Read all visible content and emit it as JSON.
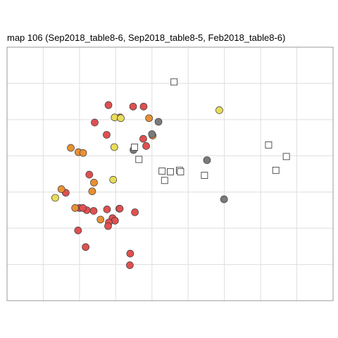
{
  "chart_data": {
    "type": "scatter",
    "title": "map 106 (Sep2018_table8-6, Sep2018_table8-5, Feb2018_table8-6)",
    "xlabel": "",
    "ylabel": "",
    "xlim": [
      0,
      9
    ],
    "ylim": [
      0,
      7
    ],
    "grid": true,
    "legend": "none",
    "tick_labels": "none",
    "colors": {
      "red": "#e05050",
      "orange": "#e89035",
      "yellow": "#e8dc5a",
      "gray": "#7a7a7a",
      "panel_border": "#999999",
      "grid": "#dedede"
    },
    "series": [
      {
        "marker": "circle",
        "color": "red",
        "points": [
          [
            2.8,
            5.4
          ],
          [
            2.42,
            4.92
          ],
          [
            3.12,
            5.06
          ],
          [
            3.77,
            5.36
          ],
          [
            3.48,
            5.36
          ],
          [
            2.75,
            4.58
          ],
          [
            3.76,
            4.47
          ],
          [
            3.84,
            4.27
          ],
          [
            2.27,
            3.48
          ],
          [
            1.62,
            2.98
          ],
          [
            2.0,
            2.56
          ],
          [
            2.2,
            2.5
          ],
          [
            2.09,
            2.56
          ],
          [
            2.39,
            2.48
          ],
          [
            2.76,
            2.52
          ],
          [
            3.1,
            2.54
          ],
          [
            3.11,
            2.54
          ],
          [
            3.53,
            2.44
          ],
          [
            2.91,
            2.28
          ],
          [
            2.98,
            2.21
          ],
          [
            2.81,
            2.16
          ],
          [
            2.79,
            2.06
          ],
          [
            1.96,
            1.94
          ],
          [
            2.17,
            1.48
          ],
          [
            3.4,
            1.3
          ],
          [
            3.39,
            0.98
          ]
        ]
      },
      {
        "marker": "circle",
        "color": "orange",
        "points": [
          [
            3.92,
            5.04
          ],
          [
            4.02,
            4.56
          ],
          [
            1.76,
            4.22
          ],
          [
            1.97,
            4.1
          ],
          [
            2.1,
            4.08
          ],
          [
            2.4,
            3.26
          ],
          [
            1.5,
            3.08
          ],
          [
            2.35,
            3.02
          ],
          [
            1.88,
            2.56
          ],
          [
            2.58,
            2.24
          ]
        ]
      },
      {
        "marker": "circle",
        "color": "yellow",
        "points": [
          [
            2.97,
            5.06
          ],
          [
            3.14,
            5.04
          ],
          [
            5.86,
            5.26
          ],
          [
            2.96,
            4.24
          ],
          [
            2.93,
            3.34
          ],
          [
            1.33,
            2.84
          ]
        ]
      },
      {
        "marker": "circle",
        "color": "gray",
        "points": [
          [
            4.18,
            4.94
          ],
          [
            4.0,
            4.6
          ],
          [
            3.49,
            4.16
          ],
          [
            5.52,
            3.88
          ],
          [
            5.99,
            2.8
          ]
        ]
      },
      {
        "marker": "square",
        "color": "white",
        "points": [
          [
            4.61,
            6.04
          ],
          [
            3.52,
            4.24
          ],
          [
            3.64,
            3.9
          ],
          [
            4.28,
            3.58
          ],
          [
            4.51,
            3.56
          ],
          [
            4.76,
            3.6
          ],
          [
            4.79,
            3.56
          ],
          [
            4.35,
            3.32
          ],
          [
            5.45,
            3.46
          ],
          [
            7.22,
            4.3
          ],
          [
            7.71,
            3.98
          ],
          [
            7.42,
            3.6
          ]
        ]
      }
    ]
  }
}
